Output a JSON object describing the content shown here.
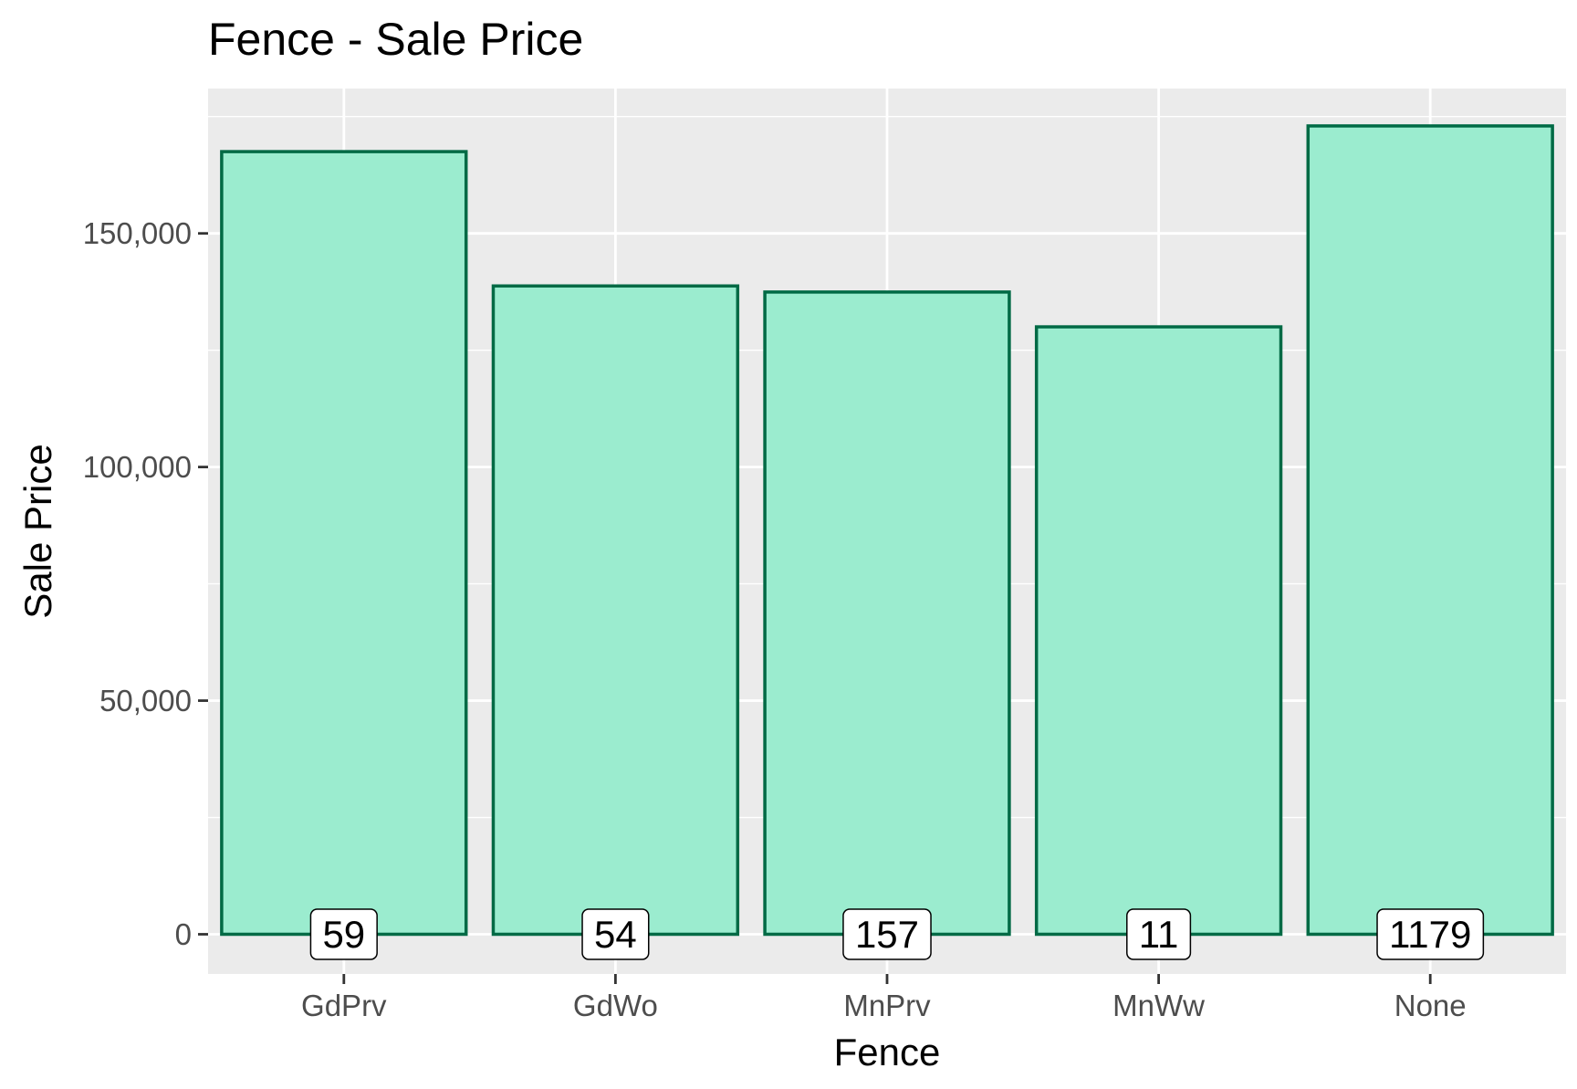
{
  "chart_data": {
    "type": "bar",
    "title": "Fence - Sale Price",
    "xlabel": "Fence",
    "ylabel": "Sale Price",
    "categories": [
      "GdPrv",
      "GdWo",
      "MnPrv",
      "MnWw",
      "None"
    ],
    "values": [
      167500,
      138750,
      137450,
      130000,
      173000
    ],
    "counts": [
      "59",
      "54",
      "157",
      "11",
      "1179"
    ],
    "yticks": [
      0,
      50000,
      100000,
      150000
    ],
    "ytick_labels": [
      "0",
      "50,000",
      "100,000",
      "150,000"
    ],
    "ylim": [
      -8500,
      181000
    ],
    "grid": true,
    "colors": {
      "panel_bg": "#ebebeb",
      "grid": "#ffffff",
      "bar_fill": "#9beccf",
      "bar_stroke": "#006a45",
      "tick": "#333333",
      "label_box_fill": "#ffffff",
      "label_box_stroke": "#000000"
    }
  }
}
